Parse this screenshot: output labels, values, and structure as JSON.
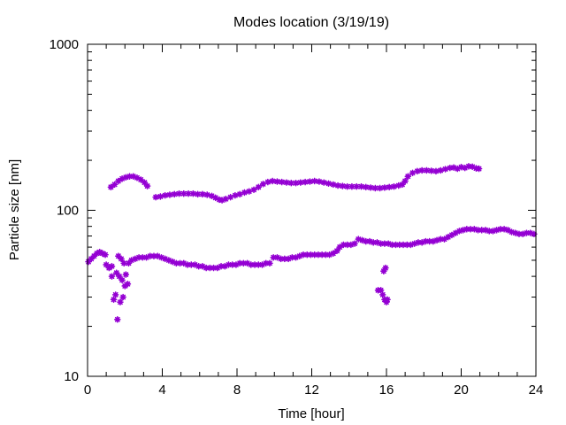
{
  "chart_data": {
    "type": "scatter",
    "title": "Modes location (3/19/19)",
    "xlabel": "Time [hour]",
    "ylabel": "Particle size [nm]",
    "xlim": [
      0,
      24
    ],
    "ylim": [
      10,
      1000
    ],
    "yscale": "log",
    "grid": false,
    "legend": "none",
    "x_ticks": [
      0,
      4,
      8,
      12,
      16,
      20,
      24
    ],
    "x_tick_labels": [
      "0",
      "4",
      "8",
      "12",
      "16",
      "20",
      "24"
    ],
    "y_ticks": [
      10,
      100,
      1000
    ],
    "y_tick_labels": [
      "10",
      "100",
      "1000"
    ],
    "color": "#9400d3",
    "marker": "star",
    "series": [
      {
        "values": [
          [
            1.25,
            138
          ],
          [
            1.45,
            143
          ],
          [
            1.65,
            150
          ],
          [
            1.85,
            155
          ],
          [
            2.05,
            158
          ],
          [
            2.25,
            160
          ],
          [
            2.45,
            160
          ],
          [
            2.65,
            157
          ],
          [
            2.85,
            153
          ],
          [
            3.05,
            147
          ],
          [
            3.2,
            140
          ],
          [
            3.65,
            120
          ],
          [
            3.9,
            121
          ],
          [
            4.15,
            123
          ],
          [
            4.4,
            124
          ],
          [
            4.65,
            125
          ],
          [
            4.9,
            126
          ],
          [
            5.15,
            126
          ],
          [
            5.4,
            126
          ],
          [
            5.65,
            126
          ],
          [
            5.9,
            125
          ],
          [
            6.15,
            125
          ],
          [
            6.4,
            124
          ],
          [
            6.65,
            122
          ],
          [
            6.85,
            119
          ],
          [
            7.05,
            116
          ],
          [
            7.2,
            115
          ],
          [
            7.4,
            117
          ],
          [
            7.65,
            120
          ],
          [
            7.9,
            123
          ],
          [
            8.15,
            125
          ],
          [
            8.4,
            128
          ],
          [
            8.65,
            130
          ],
          [
            8.9,
            133
          ],
          [
            9.15,
            138
          ],
          [
            9.4,
            144
          ],
          [
            9.65,
            148
          ],
          [
            9.9,
            150
          ],
          [
            10.15,
            149
          ],
          [
            10.4,
            148
          ],
          [
            10.65,
            147
          ],
          [
            10.9,
            146
          ],
          [
            11.15,
            146
          ],
          [
            11.4,
            147
          ],
          [
            11.65,
            148
          ],
          [
            11.9,
            149
          ],
          [
            12.15,
            150
          ],
          [
            12.4,
            149
          ],
          [
            12.65,
            147
          ],
          [
            12.9,
            145
          ],
          [
            13.15,
            143
          ],
          [
            13.4,
            141
          ],
          [
            13.65,
            140
          ],
          [
            13.9,
            139
          ],
          [
            14.15,
            139
          ],
          [
            14.4,
            139
          ],
          [
            14.65,
            139
          ],
          [
            14.9,
            138
          ],
          [
            15.15,
            137
          ],
          [
            15.4,
            136
          ],
          [
            15.65,
            136
          ],
          [
            15.9,
            137
          ],
          [
            16.15,
            138
          ],
          [
            16.4,
            139
          ],
          [
            16.65,
            141
          ],
          [
            16.85,
            143
          ],
          [
            17.0,
            150
          ],
          [
            17.15,
            160
          ],
          [
            17.4,
            168
          ],
          [
            17.65,
            172
          ],
          [
            17.9,
            174
          ],
          [
            18.15,
            174
          ],
          [
            18.4,
            173
          ],
          [
            18.65,
            172
          ],
          [
            18.9,
            174
          ],
          [
            19.15,
            177
          ],
          [
            19.4,
            180
          ],
          [
            19.6,
            181
          ],
          [
            19.8,
            178
          ],
          [
            20.0,
            182
          ],
          [
            20.2,
            180
          ],
          [
            20.4,
            184
          ],
          [
            20.6,
            183
          ],
          [
            20.8,
            179
          ],
          [
            20.95,
            178
          ]
        ]
      },
      {
        "values": [
          [
            0.05,
            49
          ],
          [
            0.2,
            51
          ],
          [
            0.35,
            53
          ],
          [
            0.5,
            55
          ],
          [
            0.65,
            56
          ],
          [
            0.8,
            55
          ],
          [
            0.95,
            54
          ],
          [
            1.0,
            47
          ],
          [
            1.15,
            45
          ],
          [
            1.3,
            46
          ],
          [
            1.3,
            40
          ],
          [
            1.4,
            29
          ],
          [
            1.5,
            31
          ],
          [
            1.55,
            42
          ],
          [
            1.6,
            22
          ],
          [
            1.65,
            53
          ],
          [
            1.7,
            40
          ],
          [
            1.75,
            28
          ],
          [
            1.8,
            51
          ],
          [
            1.85,
            38
          ],
          [
            1.9,
            30
          ],
          [
            1.95,
            48
          ],
          [
            2.0,
            35
          ],
          [
            2.05,
            41
          ],
          [
            2.15,
            36
          ],
          [
            2.2,
            48
          ],
          [
            2.35,
            50
          ],
          [
            2.55,
            51
          ],
          [
            2.75,
            52
          ],
          [
            2.95,
            52
          ],
          [
            3.15,
            52
          ],
          [
            3.35,
            53
          ],
          [
            3.55,
            53
          ],
          [
            3.75,
            53
          ],
          [
            3.95,
            52
          ],
          [
            4.15,
            51
          ],
          [
            4.35,
            50
          ],
          [
            4.55,
            49
          ],
          [
            4.75,
            48
          ],
          [
            4.95,
            48
          ],
          [
            5.15,
            48
          ],
          [
            5.35,
            47
          ],
          [
            5.55,
            47
          ],
          [
            5.75,
            47
          ],
          [
            5.95,
            46
          ],
          [
            6.15,
            46
          ],
          [
            6.35,
            45
          ],
          [
            6.55,
            45
          ],
          [
            6.75,
            45
          ],
          [
            6.95,
            45
          ],
          [
            7.15,
            46
          ],
          [
            7.35,
            46
          ],
          [
            7.55,
            47
          ],
          [
            7.75,
            47
          ],
          [
            7.95,
            47
          ],
          [
            8.15,
            48
          ],
          [
            8.35,
            48
          ],
          [
            8.55,
            48
          ],
          [
            8.75,
            47
          ],
          [
            8.95,
            47
          ],
          [
            9.15,
            47
          ],
          [
            9.35,
            47
          ],
          [
            9.55,
            48
          ],
          [
            9.75,
            48
          ],
          [
            9.95,
            52
          ],
          [
            10.15,
            52
          ],
          [
            10.35,
            51
          ],
          [
            10.55,
            51
          ],
          [
            10.75,
            51
          ],
          [
            10.95,
            52
          ],
          [
            11.15,
            52
          ],
          [
            11.35,
            53
          ],
          [
            11.55,
            54
          ],
          [
            11.75,
            54
          ],
          [
            11.95,
            54
          ],
          [
            12.15,
            54
          ],
          [
            12.35,
            54
          ],
          [
            12.55,
            54
          ],
          [
            12.75,
            54
          ],
          [
            12.95,
            54
          ],
          [
            13.15,
            55
          ],
          [
            13.35,
            57
          ],
          [
            13.5,
            60
          ],
          [
            13.7,
            62
          ],
          [
            13.9,
            62
          ],
          [
            14.1,
            62
          ],
          [
            14.3,
            63
          ],
          [
            14.5,
            67
          ],
          [
            14.7,
            66
          ],
          [
            14.9,
            65
          ],
          [
            15.1,
            65
          ],
          [
            15.3,
            64
          ],
          [
            15.5,
            64
          ],
          [
            15.7,
            63
          ],
          [
            15.9,
            63
          ],
          [
            16.1,
            63
          ],
          [
            16.3,
            62
          ],
          [
            16.5,
            62
          ],
          [
            16.7,
            62
          ],
          [
            16.9,
            62
          ],
          [
            17.1,
            62
          ],
          [
            17.3,
            62
          ],
          [
            17.5,
            63
          ],
          [
            17.7,
            64
          ],
          [
            17.9,
            64
          ],
          [
            18.1,
            65
          ],
          [
            18.3,
            65
          ],
          [
            18.5,
            65
          ],
          [
            18.7,
            66
          ],
          [
            18.9,
            67
          ],
          [
            19.1,
            67
          ],
          [
            19.3,
            69
          ],
          [
            19.5,
            71
          ],
          [
            19.7,
            73
          ],
          [
            19.9,
            75
          ],
          [
            20.1,
            76
          ],
          [
            20.3,
            77
          ],
          [
            20.5,
            77
          ],
          [
            20.7,
            77
          ],
          [
            20.9,
            76
          ],
          [
            21.1,
            76
          ],
          [
            21.3,
            76
          ],
          [
            21.5,
            75
          ],
          [
            21.7,
            75
          ],
          [
            21.9,
            76
          ],
          [
            22.1,
            77
          ],
          [
            22.3,
            77
          ],
          [
            22.5,
            76
          ],
          [
            22.7,
            74
          ],
          [
            22.9,
            73
          ],
          [
            23.1,
            72
          ],
          [
            23.3,
            72
          ],
          [
            23.5,
            73
          ],
          [
            23.7,
            73
          ],
          [
            23.9,
            72
          ],
          [
            15.55,
            33
          ],
          [
            15.7,
            33
          ],
          [
            15.8,
            31
          ],
          [
            15.85,
            43
          ],
          [
            15.95,
            45
          ],
          [
            15.9,
            29
          ],
          [
            16.0,
            28
          ],
          [
            16.05,
            29
          ]
        ]
      }
    ]
  }
}
